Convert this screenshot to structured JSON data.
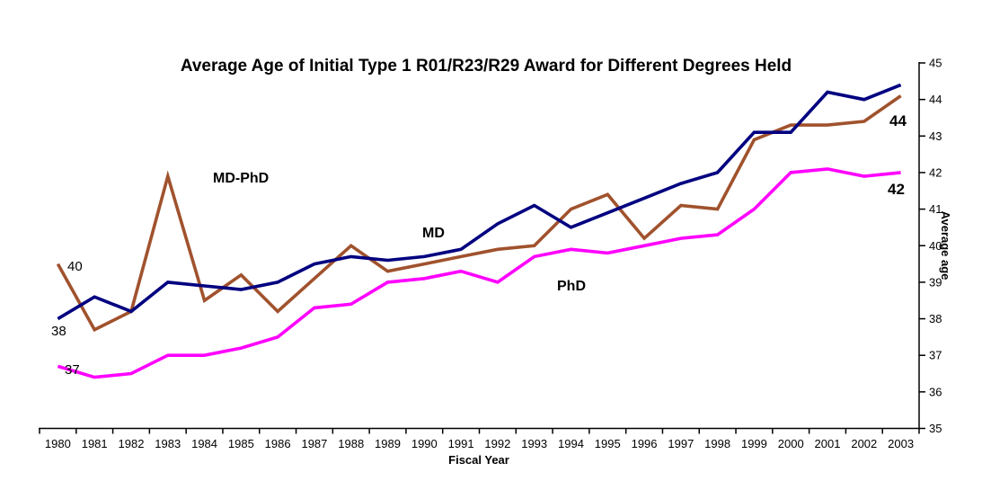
{
  "chart_data": {
    "type": "line",
    "title": "Average Age of Initial Type 1 R01/R23/R29 Award for Different Degrees Held",
    "xlabel": "Fiscal Year",
    "ylabel": "Average age",
    "categories": [
      "1980",
      "1981",
      "1982",
      "1983",
      "1984",
      "1985",
      "1986",
      "1987",
      "1988",
      "1989",
      "1990",
      "1991",
      "1992",
      "1993",
      "1994",
      "1995",
      "1996",
      "1997",
      "1998",
      "1999",
      "2000",
      "2001",
      "2002",
      "2003"
    ],
    "ylim": [
      35,
      45
    ],
    "yticks": [
      35,
      36,
      37,
      38,
      39,
      40,
      41,
      42,
      43,
      44,
      45
    ],
    "grid": false,
    "legend_position": "inline-labels",
    "series": [
      {
        "name": "MD-PhD",
        "color": "#A0522D",
        "values": [
          39.5,
          37.7,
          38.2,
          41.9,
          38.5,
          39.2,
          38.2,
          39.1,
          40.0,
          39.3,
          39.5,
          39.7,
          39.9,
          40.0,
          41.0,
          41.4,
          40.2,
          41.1,
          41.0,
          42.9,
          43.3,
          43.3,
          43.4,
          44.1
        ]
      },
      {
        "name": "MD",
        "color": "#000080",
        "values": [
          38.0,
          38.6,
          38.2,
          39.0,
          38.9,
          38.8,
          39.0,
          39.5,
          39.7,
          39.6,
          39.7,
          39.9,
          40.6,
          41.1,
          40.5,
          40.9,
          41.3,
          41.7,
          42.0,
          43.1,
          43.1,
          44.2,
          44.0,
          44.4
        ]
      },
      {
        "name": "PhD",
        "color": "#FF00FF",
        "values": [
          36.7,
          36.4,
          36.5,
          37.0,
          37.0,
          37.2,
          37.5,
          38.3,
          38.4,
          39.0,
          39.1,
          39.3,
          39.0,
          39.7,
          39.9,
          39.8,
          40.0,
          40.2,
          40.3,
          41.0,
          42.0,
          42.1,
          41.9,
          42.0
        ]
      }
    ],
    "series_labels": [
      {
        "text": "MD-PhD",
        "color": "#8B0000",
        "x": 237,
        "y": 203,
        "size": 16,
        "bold": true
      },
      {
        "text": "MD",
        "color": "#0000DD",
        "x": 470,
        "y": 264,
        "size": 16,
        "bold": true
      },
      {
        "text": "PhD",
        "color": "#FF00FF",
        "x": 620,
        "y": 323,
        "size": 16,
        "bold": true
      }
    ],
    "point_labels": [
      {
        "text": "40",
        "color": "#000000",
        "x": 75,
        "y": 301,
        "size": 15,
        "bold": false
      },
      {
        "text": "38",
        "color": "#000000",
        "x": 57,
        "y": 373,
        "size": 15,
        "bold": false
      },
      {
        "text": "37",
        "color": "#000000",
        "x": 72,
        "y": 416,
        "size": 15,
        "bold": false
      },
      {
        "text": "44",
        "color": "#000000",
        "x": 990,
        "y": 140,
        "size": 17,
        "bold": true
      },
      {
        "text": "42",
        "color": "#000000",
        "x": 988,
        "y": 216,
        "size": 17,
        "bold": true
      }
    ]
  }
}
